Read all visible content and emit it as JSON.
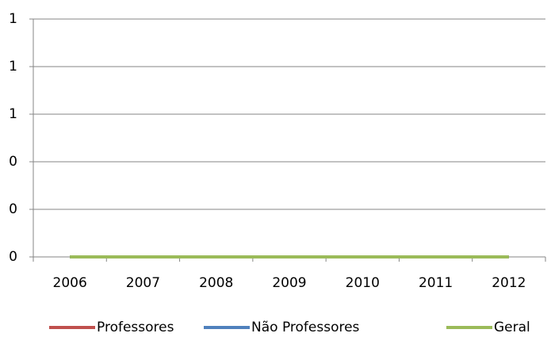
{
  "chart_data": {
    "type": "line",
    "categories": [
      "2006",
      "2007",
      "2008",
      "2009",
      "2010",
      "2011",
      "2012"
    ],
    "series": [
      {
        "name": "Professores",
        "color": "#c0504d",
        "values": [
          0,
          0,
          0,
          0,
          0,
          0,
          0
        ]
      },
      {
        "name": "Não Professores",
        "color": "#4f81bd",
        "values": [
          0,
          0,
          0,
          0,
          0,
          0,
          0
        ]
      },
      {
        "name": "Geral",
        "color": "#9bbb59",
        "values": [
          0,
          0,
          0,
          0,
          0,
          0,
          0
        ]
      }
    ],
    "ylim": [
      0,
      1
    ],
    "yticks": [
      0,
      {
        "value": 0.2,
        "label": "0"
      },
      {
        "value": 0.4,
        "label": "0"
      },
      {
        "value": 0.6,
        "label": "1"
      },
      {
        "value": 0.8,
        "label": "1"
      },
      1
    ],
    "grid": true,
    "legend": "bottom"
  }
}
